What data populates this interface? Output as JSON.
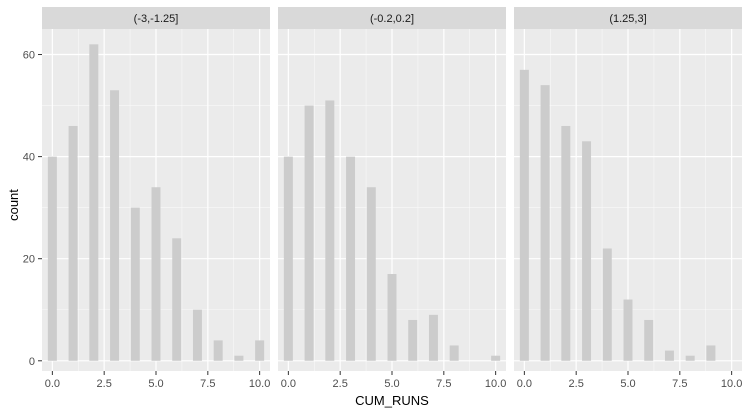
{
  "chart_data": {
    "type": "bar",
    "xlabel": "CUM_RUNS",
    "ylabel": "count",
    "xlim": [
      -0.5,
      10.5
    ],
    "ylim": [
      -2,
      65
    ],
    "x_ticks": [
      0.0,
      2.5,
      5.0,
      7.5,
      10.0
    ],
    "x_tick_labels": [
      "0.0",
      "2.5",
      "5.0",
      "7.5",
      "10.0"
    ],
    "y_ticks": [
      0,
      20,
      40,
      60
    ],
    "y_tick_labels": [
      "0",
      "20",
      "40",
      "60"
    ],
    "grid": true,
    "colors": {
      "panel_bg": "#ebebeb",
      "strip_bg": "#d9d9d9",
      "bar_fill": "#cccccc",
      "grid_major": "#ffffff",
      "text": "#4d4d4d"
    },
    "panels": [
      {
        "strip": "(-3,-1.25]",
        "bars": [
          {
            "x": 0,
            "y": 40
          },
          {
            "x": 1,
            "y": 46
          },
          {
            "x": 2,
            "y": 62
          },
          {
            "x": 3,
            "y": 53
          },
          {
            "x": 4,
            "y": 30
          },
          {
            "x": 5,
            "y": 34
          },
          {
            "x": 6,
            "y": 24
          },
          {
            "x": 7,
            "y": 10
          },
          {
            "x": 8,
            "y": 4
          },
          {
            "x": 9,
            "y": 1
          },
          {
            "x": 10,
            "y": 4
          }
        ]
      },
      {
        "strip": "(-0.2,0.2]",
        "bars": [
          {
            "x": 0,
            "y": 40
          },
          {
            "x": 1,
            "y": 50
          },
          {
            "x": 2,
            "y": 51
          },
          {
            "x": 3,
            "y": 40
          },
          {
            "x": 4,
            "y": 34
          },
          {
            "x": 5,
            "y": 17
          },
          {
            "x": 6,
            "y": 8
          },
          {
            "x": 7,
            "y": 9
          },
          {
            "x": 8,
            "y": 3
          },
          {
            "x": 10,
            "y": 1
          }
        ]
      },
      {
        "strip": "(1.25,3]",
        "bars": [
          {
            "x": 0,
            "y": 57
          },
          {
            "x": 1,
            "y": 54
          },
          {
            "x": 2,
            "y": 46
          },
          {
            "x": 3,
            "y": 43
          },
          {
            "x": 4,
            "y": 22
          },
          {
            "x": 5,
            "y": 12
          },
          {
            "x": 6,
            "y": 8
          },
          {
            "x": 7,
            "y": 2
          },
          {
            "x": 8,
            "y": 1
          },
          {
            "x": 9,
            "y": 3
          }
        ]
      }
    ]
  }
}
